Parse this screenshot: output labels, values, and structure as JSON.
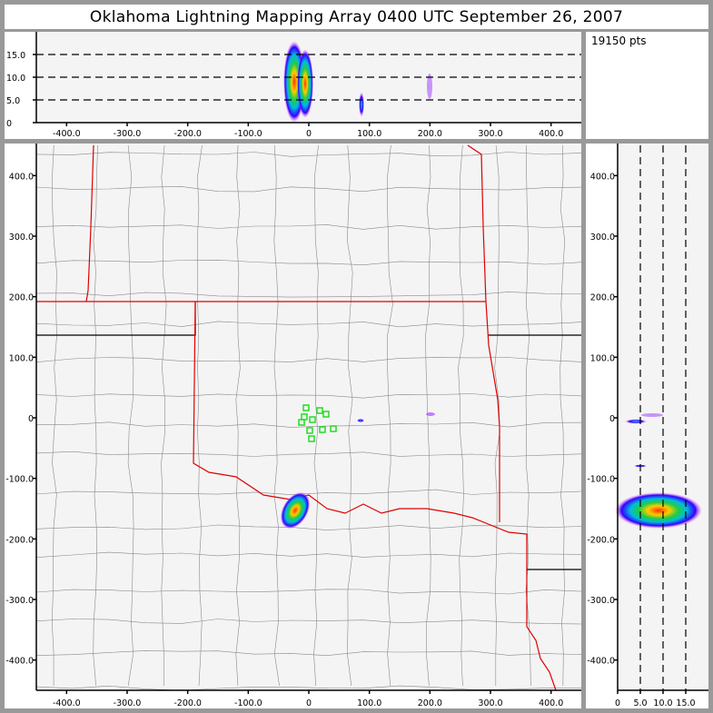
{
  "title": "Oklahoma Lightning Mapping Array   0400 UTC  September 26, 2007",
  "point_count": "19150 pts",
  "colors": {
    "background": "#999999",
    "plot_bg": "#f4f4f4",
    "state_border": "#e00000",
    "county_line": "#8a8a8a",
    "station": "#22dd22"
  },
  "chart_data": [
    {
      "type": "heatmap",
      "panel": "altitude-vs-east-west",
      "xlim": [
        -450,
        450
      ],
      "ylim": [
        0,
        20
      ],
      "xticks": [
        "-400.0",
        "-300.0",
        "-200.0",
        "-100.0",
        "0",
        "100.0",
        "200.0",
        "300.0",
        "400.0"
      ],
      "yticks": [
        "0",
        "5.0",
        "10.0",
        "15.0"
      ],
      "grid": "dashed horizontal at 5, 10, 15 km"
    },
    {
      "type": "heatmap",
      "panel": "plan-view-map",
      "xlim": [
        -450,
        450
      ],
      "ylim": [
        -450,
        450
      ],
      "xticks": [
        "-400.0",
        "-300.0",
        "-200.0",
        "-100.0",
        "0",
        "100.0",
        "200.0",
        "300.0",
        "400.0"
      ],
      "yticks": [
        "400.0",
        "300.0",
        "200.0",
        "100.0",
        "0",
        "-100.0",
        "-200.0",
        "-300.0",
        "-400.0"
      ]
    },
    {
      "type": "heatmap",
      "panel": "north-south-vs-altitude",
      "xlim": [
        0,
        20
      ],
      "ylim": [
        -450,
        450
      ],
      "xticks": [
        "0",
        "5.0",
        "10.0",
        "15.0"
      ],
      "yticks": [
        "400.0",
        "300.0",
        "200.0",
        "100.0",
        "0",
        "-100.0",
        "-200.0",
        "-300.0",
        "-400.0"
      ],
      "grid": "dashed vertical at 5, 10, 15 km"
    }
  ]
}
